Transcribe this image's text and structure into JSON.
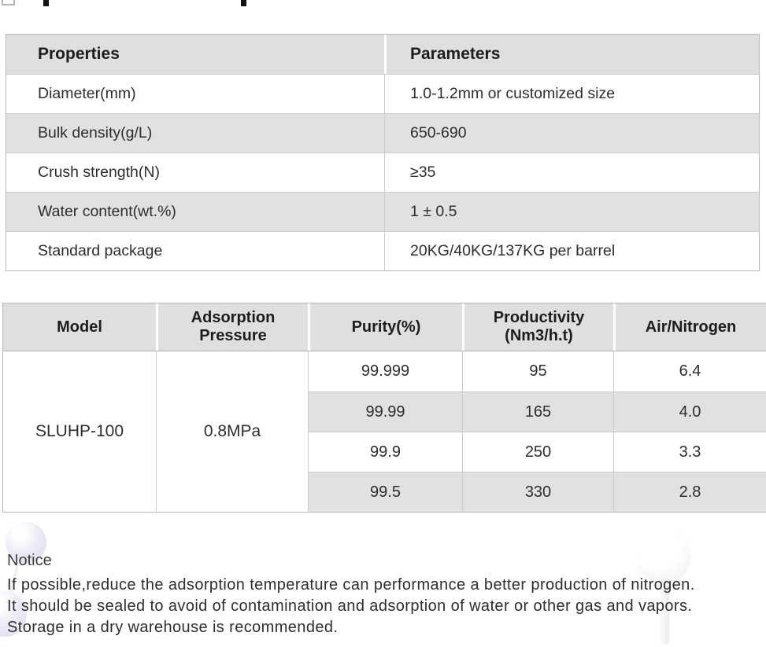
{
  "spec_table": {
    "col_headers": [
      "Properties",
      "Parameters"
    ],
    "rows": [
      {
        "property": "Diameter(mm)",
        "parameter": "1.0-1.2mm or customized size"
      },
      {
        "property": "Bulk density(g/L)",
        "parameter": "650-690"
      },
      {
        "property": "Crush strength(N)",
        "parameter": "≥35"
      },
      {
        "property": "Water content(wt.%)",
        "parameter": "1 ± 0.5"
      },
      {
        "property": "Standard package",
        "parameter": "20KG/40KG/137KG per barrel"
      }
    ]
  },
  "performance_table": {
    "col_headers": [
      "Model",
      "Adsorption Pressure",
      "Purity(%)",
      "Productivity (Nm3/h.t)",
      "Air/Nitrogen"
    ],
    "model": "SLUHP-100",
    "adsorption_pressure": "0.8MPa",
    "rows": [
      {
        "purity": "99.999",
        "productivity": "95",
        "air_nitrogen": "6.4"
      },
      {
        "purity": "99.99",
        "productivity": "165",
        "air_nitrogen": "4.0"
      },
      {
        "purity": "99.9",
        "productivity": "250",
        "air_nitrogen": "3.3"
      },
      {
        "purity": "99.5",
        "productivity": "330",
        "air_nitrogen": "2.8"
      }
    ]
  },
  "notice": {
    "title": "Notice",
    "lines": [
      "If possible,reduce the adsorption temperature can performance a better production of nitrogen.",
      "It should be sealed to avoid of contamination and adsorption of water or other gas and vapors.",
      "Storage in a dry warehouse is recommended."
    ]
  },
  "colors": {
    "table_header_bg": "#dfdfdf",
    "row_stripe_bg": "#e1e1e1",
    "table_border": "#cccccc",
    "text": "#2d2d2d",
    "balloon_lavender": "#d9d9ee",
    "balloon_white": "#ebebf0"
  }
}
